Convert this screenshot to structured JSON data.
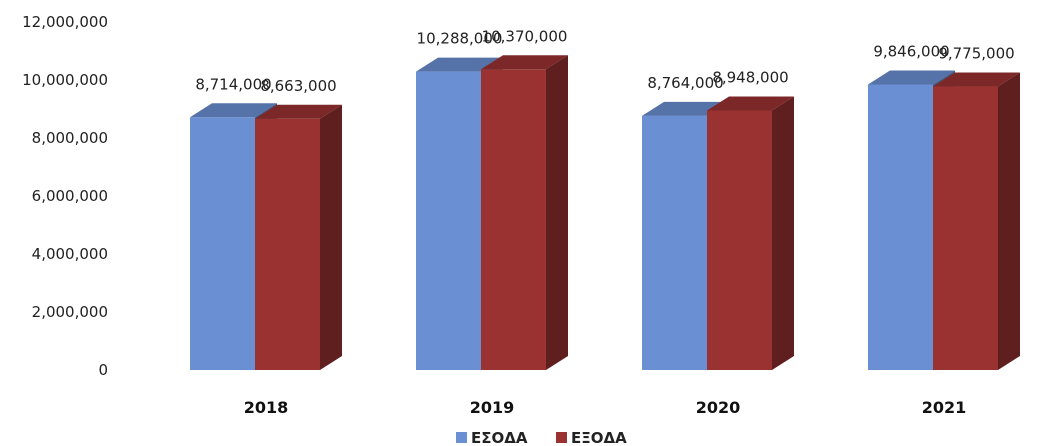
{
  "chart_data": {
    "type": "bar",
    "style": "3d-clustered",
    "categories": [
      "2018",
      "2019",
      "2020",
      "2021"
    ],
    "series": [
      {
        "name": "ΕΣΟΔΑ",
        "values": [
          8714000,
          10288000,
          8764000,
          9846000
        ],
        "labels": [
          "8,714,000",
          "10,288,000",
          "8,764,000",
          "9,846,000"
        ],
        "color": "#6a8fd3"
      },
      {
        "name": "ΕΞΟΔΑ",
        "values": [
          8663000,
          10370000,
          8948000,
          9775000
        ],
        "labels": [
          "8,663,000",
          "10,370,000",
          "8,948,000",
          "9,775,000"
        ],
        "color": "#9b3232"
      }
    ],
    "ylim": [
      0,
      12000000
    ],
    "yticks": [
      0,
      2000000,
      4000000,
      6000000,
      8000000,
      10000000,
      12000000
    ],
    "ytick_labels": [
      "0",
      "2,000,000",
      "4,000,000",
      "6,000,000",
      "8,000,000",
      "10,000,000",
      "12,000,000"
    ],
    "legend_position": "bottom-center",
    "grid": false
  }
}
